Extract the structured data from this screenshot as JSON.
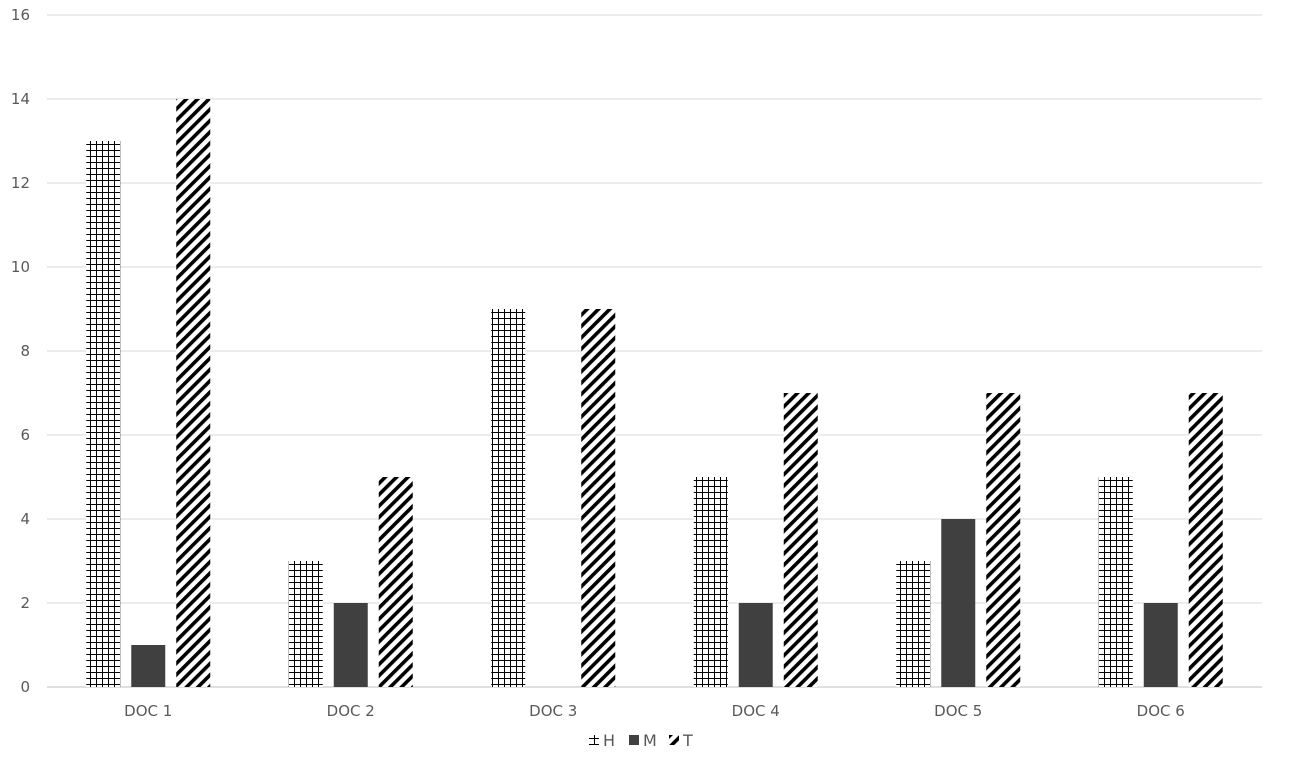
{
  "chart_data": {
    "type": "bar",
    "categories": [
      "DOC 1",
      "DOC 2",
      "DOC 3",
      "DOC 4",
      "DOC 5",
      "DOC 6"
    ],
    "series": [
      {
        "name": "H",
        "pattern": "grid",
        "values": [
          13,
          3,
          9,
          5,
          3,
          5
        ]
      },
      {
        "name": "M",
        "pattern": "solid",
        "color": "#404040",
        "values": [
          1,
          2,
          0,
          2,
          4,
          2
        ]
      },
      {
        "name": "T",
        "pattern": "diagonal",
        "values": [
          14,
          5,
          9,
          7,
          7,
          7
        ]
      }
    ],
    "yticks": [
      0,
      2,
      4,
      6,
      8,
      10,
      12,
      14,
      16
    ],
    "ylim": [
      0,
      16
    ],
    "grid": true,
    "legend": "bottom",
    "colors": {
      "gridline": "#d9d9d9",
      "axis": "#bfbfbf",
      "ink": "#000000",
      "text": "#595959"
    }
  }
}
